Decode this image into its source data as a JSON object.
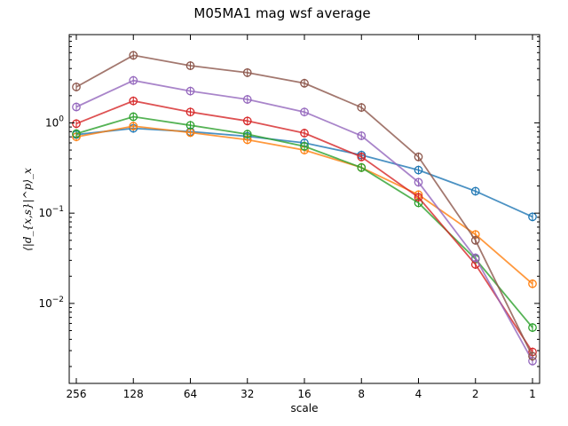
{
  "chart_data": {
    "type": "line",
    "title": "M05MA1 mag wsf average",
    "xlabel": "scale",
    "ylabel": "⟨|d_{x,s}|^p⟩_x",
    "x_scale": "log2-reversed",
    "y_scale": "log",
    "x": [
      256,
      128,
      64,
      32,
      16,
      8,
      4,
      2,
      1
    ],
    "x_tick_labels": [
      "256",
      "128",
      "64",
      "32",
      "16",
      "8",
      "4",
      "2",
      "1"
    ],
    "xlim": [
      256,
      1
    ],
    "ylim": [
      0.0013,
      9.5
    ],
    "y_ticks": [
      {
        "value": 0.01,
        "base": "10",
        "exp": "−2"
      },
      {
        "value": 0.1,
        "base": "10",
        "exp": "−1"
      },
      {
        "value": 1,
        "base": "10",
        "exp": "0"
      }
    ],
    "grid": false,
    "legend": "none",
    "marker": "circle-open-errorbar",
    "series": [
      {
        "color": "#1f77b4",
        "values": [
          0.74,
          0.87,
          0.8,
          0.71,
          0.6,
          0.44,
          0.3,
          0.175,
          0.091
        ]
      },
      {
        "color": "#ff7f0e",
        "values": [
          0.7,
          0.92,
          0.78,
          0.65,
          0.5,
          0.32,
          0.16,
          0.058,
          0.0165
        ]
      },
      {
        "color": "#2ca02c",
        "values": [
          0.76,
          1.17,
          0.94,
          0.75,
          0.55,
          0.32,
          0.13,
          0.031,
          0.0054
        ]
      },
      {
        "color": "#d62728",
        "values": [
          0.98,
          1.75,
          1.32,
          1.05,
          0.77,
          0.42,
          0.15,
          0.027,
          0.0029
        ]
      },
      {
        "color": "#9467bd",
        "values": [
          1.5,
          2.95,
          2.25,
          1.82,
          1.32,
          0.72,
          0.22,
          0.032,
          0.0023
        ]
      },
      {
        "color": "#8c564b",
        "values": [
          2.5,
          5.6,
          4.3,
          3.6,
          2.75,
          1.48,
          0.42,
          0.05,
          0.0026
        ]
      }
    ]
  }
}
